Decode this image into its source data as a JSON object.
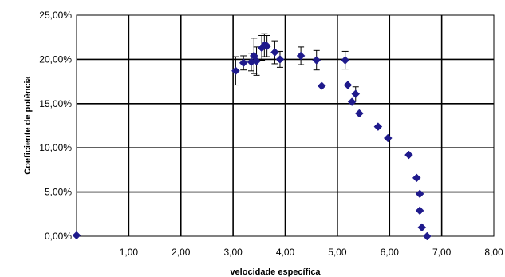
{
  "chart_data": {
    "type": "scatter",
    "title": "",
    "xlabel": "velocidade específica",
    "ylabel": "Coeficiente de potência",
    "xlim": [
      0,
      8
    ],
    "ylim": [
      0,
      25
    ],
    "x_ticks": [
      1,
      2,
      3,
      4,
      5,
      6,
      7,
      8
    ],
    "x_tick_labels": [
      "1,00",
      "2,00",
      "3,00",
      "4,00",
      "5,00",
      "6,00",
      "7,00",
      "8,00"
    ],
    "y_ticks": [
      0,
      5,
      10,
      15,
      20,
      25
    ],
    "y_tick_labels": [
      "0,00%",
      "5,00%",
      "10,00%",
      "15,00%",
      "20,00%",
      "25,00%"
    ],
    "grid": true,
    "legend": "none",
    "marker": "diamond",
    "color": "#1F1A8C",
    "errorbar_color": "#000000",
    "series": [
      {
        "points": [
          {
            "x": 0.0,
            "y": 0.1
          },
          {
            "x": 3.05,
            "y": 18.7,
            "err": 1.6
          },
          {
            "x": 3.2,
            "y": 19.6,
            "err": 0.8
          },
          {
            "x": 3.35,
            "y": 19.7,
            "err": 1.0
          },
          {
            "x": 3.4,
            "y": 20.4,
            "err": 2.0
          },
          {
            "x": 3.45,
            "y": 19.8,
            "err": 1.6
          },
          {
            "x": 3.55,
            "y": 21.3,
            "err": 1.4
          },
          {
            "x": 3.6,
            "y": 21.6,
            "err": 1.3
          },
          {
            "x": 3.65,
            "y": 21.5,
            "err": 1.2
          },
          {
            "x": 3.8,
            "y": 20.8,
            "err": 1.3
          },
          {
            "x": 3.9,
            "y": 20.0,
            "err": 0.9
          },
          {
            "x": 4.3,
            "y": 20.4,
            "err": 1.0
          },
          {
            "x": 4.6,
            "y": 19.9,
            "err": 1.1
          },
          {
            "x": 5.15,
            "y": 19.9,
            "err": 1.0
          },
          {
            "x": 4.7,
            "y": 17.0
          },
          {
            "x": 5.2,
            "y": 17.1
          },
          {
            "x": 5.28,
            "y": 15.2
          },
          {
            "x": 5.35,
            "y": 16.1,
            "err": 0.8
          },
          {
            "x": 5.42,
            "y": 13.9
          },
          {
            "x": 5.78,
            "y": 12.4
          },
          {
            "x": 5.97,
            "y": 11.1
          },
          {
            "x": 6.37,
            "y": 9.2
          },
          {
            "x": 6.52,
            "y": 6.6
          },
          {
            "x": 6.58,
            "y": 4.8
          },
          {
            "x": 6.58,
            "y": 2.9
          },
          {
            "x": 6.62,
            "y": 1.0
          },
          {
            "x": 6.72,
            "y": 0.0
          }
        ]
      }
    ]
  }
}
